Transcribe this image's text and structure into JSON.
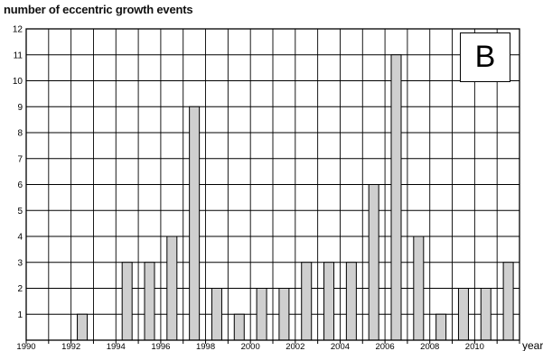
{
  "chart_data": {
    "type": "bar",
    "ylabel": "number of eccentric growth events",
    "xlabel": "years",
    "panel_label": "B",
    "categories": [
      1990,
      1991,
      1992,
      1993,
      1994,
      1995,
      1996,
      1997,
      1998,
      1999,
      2000,
      2001,
      2002,
      2003,
      2004,
      2005,
      2006,
      2007,
      2008,
      2009,
      2010,
      2011
    ],
    "values": [
      0,
      0,
      1,
      0,
      3,
      3,
      4,
      9,
      2,
      1,
      2,
      2,
      3,
      3,
      3,
      6,
      11,
      4,
      1,
      2,
      2,
      3
    ],
    "xtick_labels": [
      "1990",
      "1992",
      "1994",
      "1996",
      "1998",
      "2000",
      "2002",
      "2004",
      "2006",
      "2008",
      "2010"
    ],
    "ytick_labels": [
      "1",
      "2",
      "3",
      "4",
      "5",
      "6",
      "7",
      "8",
      "9",
      "10",
      "11",
      "12"
    ],
    "ylim": [
      0,
      12
    ],
    "xlim": [
      1990,
      2011
    ],
    "grid": true,
    "bar_color": "#cfcfcf",
    "bar_edge_color": "#000000"
  }
}
